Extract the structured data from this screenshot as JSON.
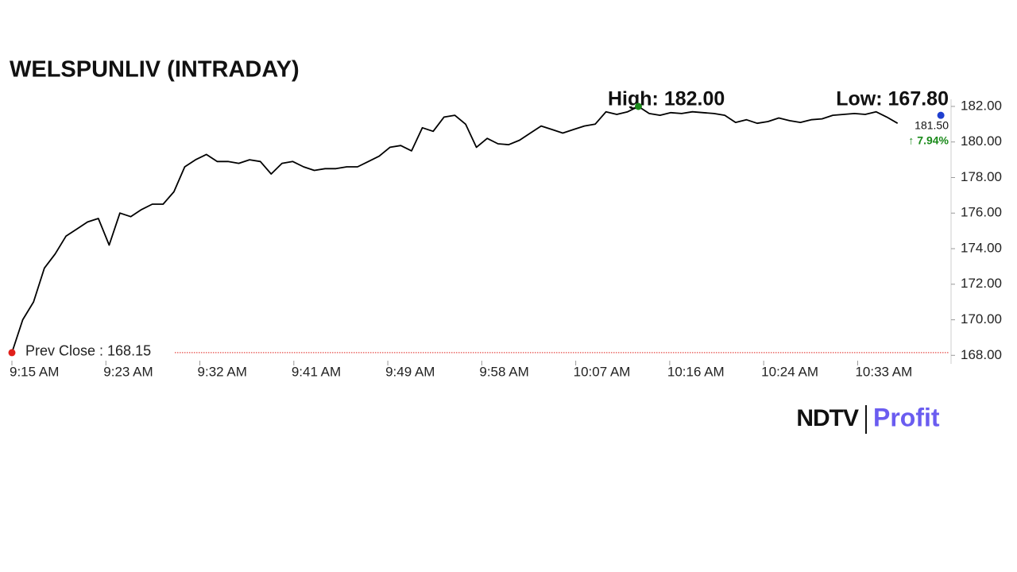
{
  "chart_data": {
    "type": "line",
    "title": "WELSPUNLIV (INTRADAY)",
    "x": [
      0,
      1,
      2,
      3,
      4,
      5,
      6,
      7,
      8,
      9,
      10,
      11,
      12,
      13,
      14,
      15,
      16,
      17,
      18,
      19,
      20,
      21,
      22,
      23,
      24,
      25,
      26,
      27,
      28,
      29,
      30,
      31,
      32,
      33,
      34,
      35,
      36,
      37,
      38,
      39,
      40,
      41,
      42,
      43,
      44,
      45,
      46,
      47,
      48,
      49,
      50,
      51,
      52,
      53,
      54,
      55,
      56,
      57,
      58,
      59,
      60,
      61,
      62,
      63,
      64,
      65,
      66,
      67,
      68,
      69,
      70,
      71,
      72,
      73,
      74,
      75,
      76,
      77,
      78,
      79,
      80,
      81,
      82,
      83,
      84,
      85,
      86
    ],
    "values": [
      168.15,
      170.0,
      171.0,
      172.9,
      173.7,
      174.7,
      175.1,
      175.5,
      175.7,
      174.2,
      176.0,
      175.8,
      176.2,
      176.5,
      176.5,
      177.2,
      178.6,
      179.0,
      179.3,
      178.9,
      178.9,
      178.8,
      179.0,
      178.9,
      178.2,
      178.8,
      178.9,
      178.6,
      178.4,
      178.5,
      178.5,
      178.6,
      178.6,
      178.9,
      179.2,
      179.7,
      179.8,
      179.5,
      180.8,
      180.6,
      181.4,
      181.5,
      181.0,
      179.7,
      180.2,
      179.9,
      179.85,
      180.1,
      180.5,
      180.9,
      180.7,
      180.5,
      180.7,
      180.9,
      181.0,
      181.7,
      181.55,
      181.7,
      182.0,
      181.6,
      181.5,
      181.65,
      181.6,
      181.7,
      181.65,
      181.6,
      181.5,
      181.1,
      181.25,
      181.05,
      181.15,
      181.35,
      181.2,
      181.1,
      181.25,
      181.3,
      181.5,
      181.55,
      181.6,
      181.55,
      181.7,
      181.4,
      181.05,
      null,
      null,
      null,
      181.5
    ],
    "color": "#000000",
    "xlim": [
      0,
      86.8
    ],
    "xticks": [
      {
        "value": 0,
        "label": "9:15 AM"
      },
      {
        "value": 8.7,
        "label": "9:23 AM"
      },
      {
        "value": 17.4,
        "label": "9:32 AM"
      },
      {
        "value": 26.1,
        "label": "9:41 AM"
      },
      {
        "value": 34.8,
        "label": "9:49 AM"
      },
      {
        "value": 43.5,
        "label": "9:58 AM"
      },
      {
        "value": 52.2,
        "label": "10:07 AM"
      },
      {
        "value": 60.9,
        "label": "10:16 AM"
      },
      {
        "value": 69.6,
        "label": "10:24 AM"
      },
      {
        "value": 78.3,
        "label": "10:33 AM"
      }
    ],
    "ylim": [
      167.7,
      182.4
    ],
    "yticks": [
      {
        "value": 168,
        "label": "168.00"
      },
      {
        "value": 170,
        "label": "170.00"
      },
      {
        "value": 172,
        "label": "172.00"
      },
      {
        "value": 174,
        "label": "174.00"
      },
      {
        "value": 176,
        "label": "176.00"
      },
      {
        "value": 178,
        "label": "178.00"
      },
      {
        "value": 180,
        "label": "180.00"
      },
      {
        "value": 182,
        "label": "182.00"
      }
    ],
    "prev_close": {
      "value": 168.15,
      "label": "Prev Close : 168.15"
    },
    "prev_close_color": "#e0201b",
    "high_label": "High: 182.00",
    "high_color": "#1a8a1a",
    "low_label": "Low: 167.80",
    "last_label": "181.50",
    "last_color": "#1f3fcf",
    "change_label": "↑ 7.94%",
    "change_color": "#1a8a1a",
    "logo_left": "NDTV",
    "logo_right": "Profit"
  }
}
